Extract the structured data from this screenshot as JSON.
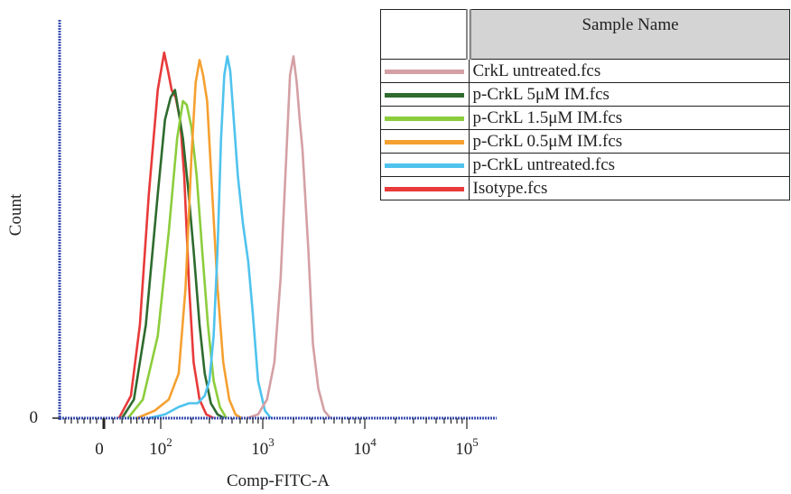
{
  "chart_data": {
    "type": "line",
    "xlabel": "Comp-FITC-A",
    "ylabel": "Count",
    "x_scale": "biexponential",
    "x_ticks": [
      {
        "value": 0,
        "label": "0"
      },
      {
        "value": 100,
        "label": "10",
        "exp": "2"
      },
      {
        "value": 1000,
        "label": "10",
        "exp": "3"
      },
      {
        "value": 10000,
        "label": "10",
        "exp": "4"
      },
      {
        "value": 100000,
        "label": "10",
        "exp": "5"
      }
    ],
    "y_ticks": [
      {
        "value": 0,
        "label": "0"
      }
    ],
    "ylim": [
      0,
      100
    ],
    "legend": {
      "header": "Sample Name",
      "placement": "top-right",
      "entries": [
        {
          "name": "CrkL untreated.fcs",
          "color": "#d4a0a4"
        },
        {
          "name": "p-CrkL 5μM IM.fcs",
          "color": "#2e6b2e"
        },
        {
          "name": "p-CrkL 1.5μM IM.fcs",
          "color": "#8ccd3c"
        },
        {
          "name": "p-CrkL 0.5μM IM.fcs",
          "color": "#f5a030"
        },
        {
          "name": "p-CrkL untreated.fcs",
          "color": "#4fc3ee"
        },
        {
          "name": "Isotype.fcs",
          "color": "#e83a3a"
        }
      ]
    },
    "series": [
      {
        "name": "Isotype.fcs",
        "color": "#e83a3a",
        "x": [
          30,
          50,
          65,
          80,
          95,
          108,
          118,
          128,
          140,
          155,
          170,
          190,
          210,
          240,
          280,
          330
        ],
        "y": [
          0,
          6,
          25,
          60,
          88,
          98,
          93,
          88,
          86,
          80,
          65,
          35,
          15,
          5,
          1,
          0
        ]
      },
      {
        "name": "p-CrkL 5μM IM.fcs",
        "color": "#2e6b2e",
        "x": [
          35,
          55,
          75,
          95,
          110,
          125,
          138,
          150,
          165,
          185,
          210,
          240,
          270,
          310,
          360,
          420
        ],
        "y": [
          0,
          5,
          25,
          60,
          80,
          86,
          88,
          82,
          75,
          62,
          45,
          25,
          12,
          4,
          1,
          0
        ]
      },
      {
        "name": "p-CrkL 1.5μM IM.fcs",
        "color": "#8ccd3c",
        "x": [
          45,
          70,
          95,
          120,
          145,
          165,
          180,
          200,
          225,
          255,
          290,
          330,
          380,
          440
        ],
        "y": [
          0,
          5,
          22,
          50,
          75,
          85,
          84,
          78,
          65,
          45,
          25,
          10,
          3,
          0
        ]
      },
      {
        "name": "p-CrkL 0.5μM IM.fcs",
        "color": "#f5a030",
        "x": [
          60,
          90,
          120,
          150,
          175,
          200,
          220,
          240,
          260,
          285,
          320,
          360,
          410,
          470,
          540,
          620
        ],
        "y": [
          0,
          2,
          5,
          12,
          35,
          70,
          90,
          96,
          92,
          85,
          60,
          35,
          15,
          5,
          1,
          0
        ]
      },
      {
        "name": "p-CrkL untreated.fcs",
        "color": "#4fc3ee",
        "x": [
          80,
          110,
          150,
          190,
          230,
          270,
          300,
          330,
          360,
          390,
          420,
          450,
          480,
          520,
          570,
          640,
          720,
          800,
          900,
          1050,
          1200
        ],
        "y": [
          0,
          1,
          3,
          4,
          4,
          6,
          10,
          22,
          45,
          75,
          92,
          97,
          93,
          80,
          65,
          52,
          42,
          28,
          10,
          2,
          0
        ]
      },
      {
        "name": "CrkL untreated.fcs",
        "color": "#d4a0a4",
        "x": [
          700,
          900,
          1100,
          1300,
          1500,
          1700,
          1850,
          2000,
          2150,
          2300,
          2450,
          2600,
          2800,
          3100,
          3500,
          4000,
          4600
        ],
        "y": [
          0,
          1,
          5,
          15,
          38,
          70,
          92,
          97,
          90,
          80,
          72,
          60,
          45,
          20,
          8,
          2,
          0
        ]
      }
    ]
  }
}
